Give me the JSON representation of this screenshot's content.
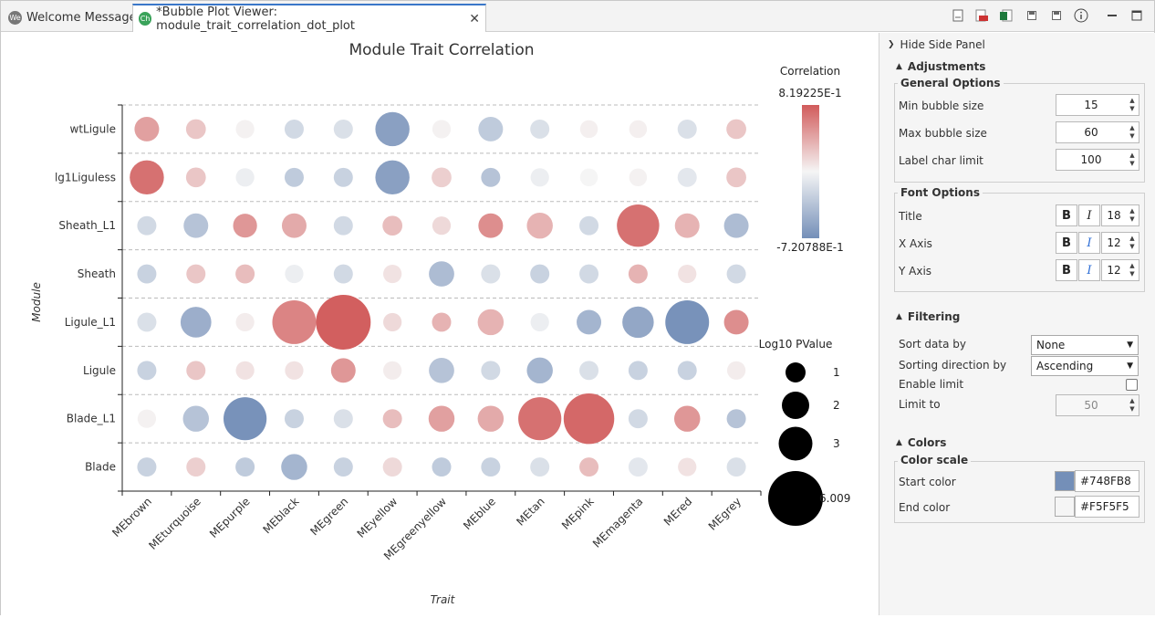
{
  "tabs": [
    {
      "label": "Welcome Message",
      "icon": "We",
      "icon_color": "#777777",
      "active": false
    },
    {
      "label": "*Bubble Plot Viewer: module_trait_correlation_dot_plot",
      "icon": "Ch",
      "icon_color": "#3aa35a",
      "active": true
    }
  ],
  "toolbar": {
    "icons": [
      "document-icon",
      "pdf-icon",
      "excel-icon",
      "save-icon",
      "save-as-icon",
      "info-icon"
    ],
    "window_icons": [
      "minimize-icon",
      "maximize-icon"
    ]
  },
  "chart_data": {
    "type": "scatter",
    "subtype": "bubble-matrix",
    "title": "Module Trait Correlation",
    "xlabel": "Trait",
    "ylabel": "Module",
    "x_categories": [
      "MEbrown",
      "MEturquoise",
      "MEpurple",
      "MEblack",
      "MEgreen",
      "MEyellow",
      "MEgreenyellow",
      "MEblue",
      "MEtan",
      "MEpink",
      "MEmagenta",
      "MEred",
      "MEgrey"
    ],
    "y_categories": [
      "wtLigule",
      "lg1Liguless",
      "Sheath_L1",
      "Sheath",
      "Ligule_L1",
      "Ligule",
      "Blade_L1",
      "Blade"
    ],
    "color_legend": {
      "title": "Correlation",
      "max_label": "8.19225E-1",
      "min_label": "-7.20788E-1",
      "max": 0.819225,
      "min": -0.720788
    },
    "size_legend": {
      "title": "Log10 PValue",
      "labels": [
        "1",
        "2",
        "3",
        "6.009"
      ],
      "values": [
        1,
        2,
        3,
        6.009
      ]
    },
    "grid": "horizontal-dashed",
    "points": {
      "wtLigule": {
        "corr": [
          0.45,
          0.25,
          0.02,
          -0.2,
          -0.15,
          -0.6,
          0.02,
          -0.3,
          -0.15,
          0.03,
          0.03,
          -0.15,
          0.25
        ],
        "log10p": [
          1.6,
          0.9,
          0.7,
          0.8,
          0.8,
          3.0,
          0.7,
          1.6,
          0.8,
          0.6,
          0.6,
          0.8,
          0.9
        ]
      },
      "lg1Liguless": {
        "corr": [
          0.7,
          0.25,
          -0.05,
          -0.3,
          -0.25,
          -0.6,
          0.2,
          -0.35,
          -0.05,
          0.0,
          0.02,
          -0.1,
          0.25
        ],
        "log10p": [
          3.0,
          0.9,
          0.7,
          0.8,
          0.8,
          3.0,
          0.9,
          0.8,
          0.7,
          0.6,
          0.6,
          0.8,
          0.9
        ]
      },
      "Sheath_L1": {
        "corr": [
          -0.2,
          -0.35,
          0.5,
          0.4,
          -0.2,
          0.3,
          0.15,
          0.55,
          0.35,
          -0.2,
          0.7,
          0.35,
          -0.4
        ],
        "log10p": [
          0.8,
          1.6,
          1.5,
          1.6,
          0.8,
          0.9,
          0.7,
          1.6,
          1.8,
          0.8,
          4.2,
          1.6,
          1.6
        ]
      },
      "Sheath": {
        "corr": [
          -0.25,
          0.25,
          0.3,
          -0.05,
          -0.2,
          0.1,
          -0.4,
          -0.15,
          -0.25,
          -0.2,
          0.35,
          0.1,
          -0.2
        ],
        "log10p": [
          0.8,
          0.8,
          0.8,
          0.7,
          0.8,
          0.7,
          1.7,
          0.8,
          0.8,
          0.8,
          0.8,
          0.7,
          0.8
        ]
      },
      "Ligule_L1": {
        "corr": [
          -0.15,
          -0.5,
          0.05,
          0.6,
          0.8,
          0.15,
          0.35,
          0.35,
          -0.05,
          -0.45,
          -0.55,
          -0.7,
          0.55
        ],
        "log10p": [
          0.8,
          2.5,
          0.7,
          4.4,
          6.009,
          0.7,
          0.8,
          1.8,
          0.7,
          1.6,
          2.6,
          4.4,
          1.6
        ]
      },
      "Ligule": {
        "corr": [
          -0.25,
          0.25,
          0.1,
          0.1,
          0.5,
          0.05,
          -0.35,
          -0.2,
          -0.45,
          -0.15,
          -0.25,
          -0.25,
          0.05
        ],
        "log10p": [
          0.8,
          0.8,
          0.7,
          0.7,
          1.6,
          0.7,
          1.7,
          0.8,
          1.8,
          0.8,
          0.8,
          0.8,
          0.7
        ]
      },
      "Blade_L1": {
        "corr": [
          0.02,
          -0.35,
          -0.7,
          -0.25,
          -0.15,
          0.3,
          0.45,
          0.4,
          0.7,
          0.75,
          -0.2,
          0.5,
          -0.35
        ],
        "log10p": [
          0.7,
          1.8,
          4.3,
          0.8,
          0.8,
          0.8,
          1.8,
          1.8,
          4.3,
          5.4,
          0.8,
          1.8,
          0.8
        ]
      },
      "Blade": {
        "corr": [
          -0.25,
          0.2,
          -0.3,
          -0.45,
          -0.25,
          0.15,
          -0.3,
          -0.25,
          -0.15,
          0.3,
          -0.1,
          0.1,
          -0.15
        ],
        "log10p": [
          0.8,
          0.8,
          0.8,
          1.8,
          0.8,
          0.8,
          0.8,
          0.8,
          0.8,
          0.8,
          0.8,
          0.7,
          0.8
        ]
      }
    }
  },
  "side_panel": {
    "hide_label": "Hide Side Panel",
    "adjustments": {
      "header": "Adjustments",
      "general": {
        "title": "General Options",
        "rows": [
          {
            "label": "Min bubble size",
            "value": "15"
          },
          {
            "label": "Max bubble size",
            "value": "60"
          },
          {
            "label": "Label char limit",
            "value": "100"
          }
        ]
      },
      "font": {
        "title": "Font Options",
        "bold": "B",
        "italic": "I",
        "rows": [
          {
            "label": "Title",
            "size": "18",
            "italic_on": false
          },
          {
            "label": "X Axis",
            "size": "12",
            "italic_on": true
          },
          {
            "label": "Y Axis",
            "size": "12",
            "italic_on": true
          }
        ]
      }
    },
    "filtering": {
      "header": "Filtering",
      "sort_label": "Sort data by",
      "sort_value": "None",
      "direction_label": "Sorting direction by",
      "direction_value": "Ascending",
      "enable_label": "Enable limit",
      "enable_checked": false,
      "limit_label": "Limit to",
      "limit_value": "50"
    },
    "colors": {
      "header": "Colors",
      "scale_title": "Color scale",
      "start_label": "Start color",
      "start_value": "#748FB8",
      "end_label": "End color",
      "end_value": "#F5F5F5"
    }
  }
}
